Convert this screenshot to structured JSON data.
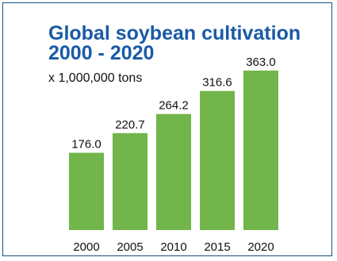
{
  "chart_data": {
    "type": "bar",
    "title_lines": [
      "Global soybean cultivation",
      "2000 - 2020"
    ],
    "subtitle": "x 1,000,000 tons",
    "categories": [
      "2000",
      "2005",
      "2010",
      "2015",
      "2020"
    ],
    "values": [
      176.0,
      220.7,
      264.2,
      316.6,
      363.0
    ],
    "value_labels": [
      "176.0",
      "220.7",
      "264.2",
      "316.6",
      "363.0"
    ],
    "xlabel": "",
    "ylabel": "",
    "ylim": [
      0,
      363.0
    ],
    "grid": false,
    "legend": "none"
  },
  "colors": {
    "bar": "#72b54a",
    "title": "#1a5aa6",
    "border": "#1b4f7d"
  }
}
